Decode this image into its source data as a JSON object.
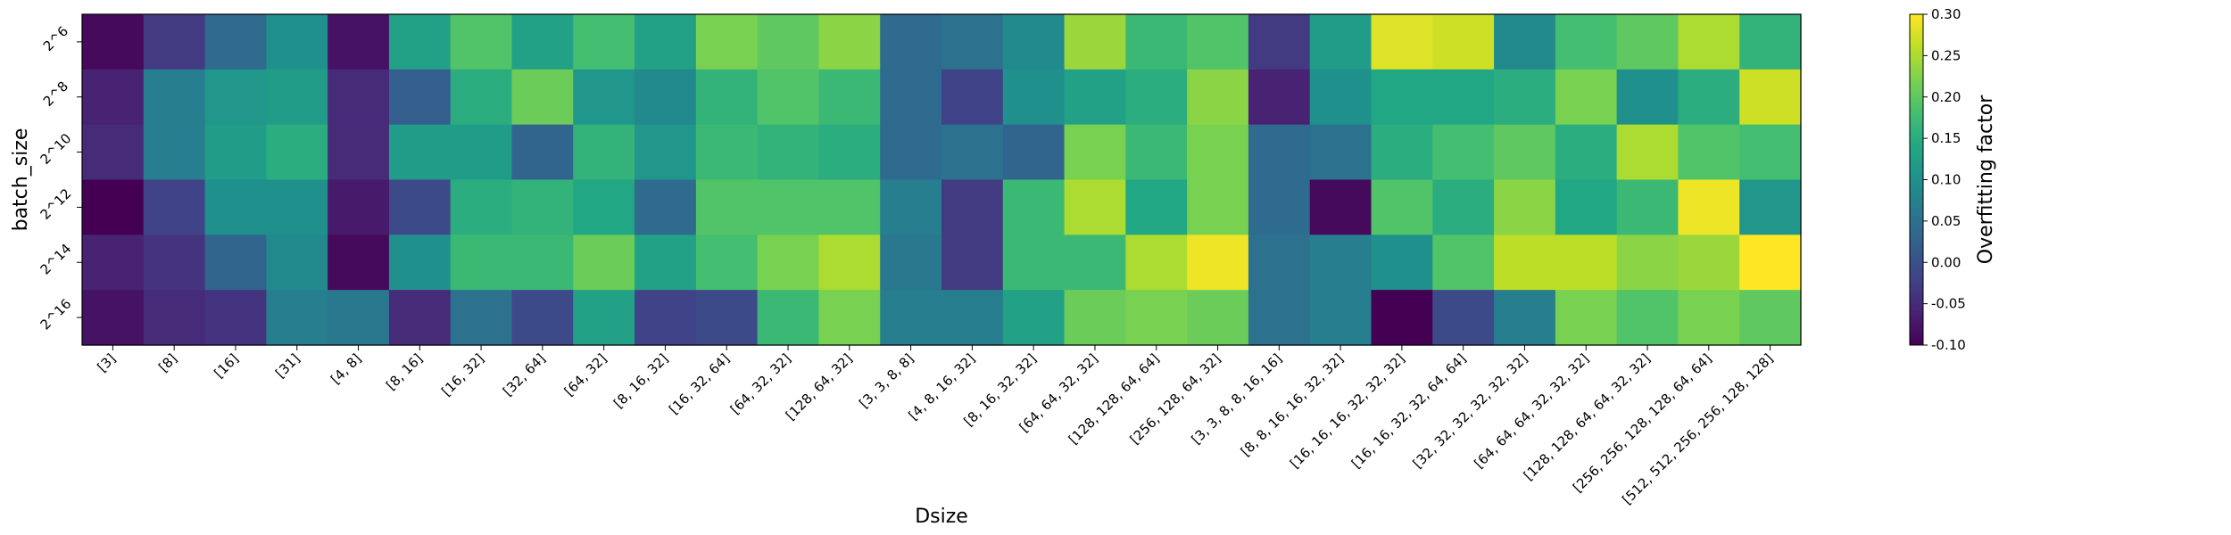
{
  "chart_data": {
    "type": "heatmap",
    "xlabel": "Dsize",
    "ylabel": "batch_size",
    "colorbar_label": "Overfitting factor",
    "colormap": "viridis",
    "vmin": -0.1,
    "vmax": 0.3,
    "colorbar_ticks": [
      "0.30",
      "0.25",
      "0.20",
      "0.15",
      "0.10",
      "0.05",
      "0.00",
      "-0.05",
      "-0.10"
    ],
    "colorbar_tick_values": [
      0.3,
      0.25,
      0.2,
      0.15,
      0.1,
      0.05,
      0.0,
      -0.05,
      -0.1
    ],
    "x_categories": [
      "[3]",
      "[8]",
      "[16]",
      "[31]",
      "[4, 8]",
      "[8, 16]",
      "[16, 32]",
      "[32, 64]",
      "[64, 32]",
      "[8, 16, 32]",
      "[16, 32, 64]",
      "[64, 32, 32]",
      "[128, 64, 32]",
      "[3, 3, 8, 8]",
      "[4, 8, 16, 32]",
      "[8, 16, 32, 32]",
      "[64, 64, 32, 32]",
      "[128, 128, 64, 64]",
      "[256, 128, 64, 32]",
      "[3, 3, 8, 8, 16, 16]",
      "[8, 8, 16, 16, 32, 32]",
      "[16, 16, 16, 32, 32, 32]",
      "[16, 16, 32, 32, 64, 64]",
      "[32, 32, 32, 32, 32, 32]",
      "[64, 64, 64, 32, 32, 32]",
      "[128, 128, 64, 64, 32, 32]",
      "[256, 256, 128, 128, 64, 64]",
      "[512, 512, 256, 256, 128, 128]"
    ],
    "y_categories": [
      "2^6",
      "2^8",
      "2^10",
      "2^12",
      "2^14",
      "2^16"
    ],
    "values": [
      [
        -0.09,
        -0.03,
        0.04,
        0.1,
        -0.08,
        0.13,
        0.19,
        0.13,
        0.18,
        0.13,
        0.22,
        0.2,
        0.23,
        0.04,
        0.05,
        0.09,
        0.24,
        0.17,
        0.19,
        -0.03,
        0.12,
        0.28,
        0.27,
        0.09,
        0.18,
        0.2,
        0.25,
        0.16
      ],
      [
        -0.06,
        0.07,
        0.11,
        0.12,
        -0.05,
        0.02,
        0.15,
        0.21,
        0.11,
        0.09,
        0.16,
        0.19,
        0.17,
        0.04,
        -0.02,
        0.1,
        0.13,
        0.15,
        0.23,
        -0.06,
        0.1,
        0.14,
        0.14,
        0.15,
        0.22,
        0.1,
        0.15,
        0.27
      ],
      [
        -0.05,
        0.07,
        0.12,
        0.15,
        -0.05,
        0.12,
        0.12,
        0.03,
        0.16,
        0.11,
        0.17,
        0.16,
        0.15,
        0.04,
        0.05,
        0.03,
        0.22,
        0.17,
        0.22,
        0.04,
        0.05,
        0.15,
        0.18,
        0.2,
        0.15,
        0.25,
        0.19,
        0.18
      ],
      [
        -0.1,
        -0.02,
        0.1,
        0.1,
        -0.07,
        -0.01,
        0.15,
        0.16,
        0.14,
        0.04,
        0.19,
        0.19,
        0.19,
        0.07,
        -0.03,
        0.17,
        0.25,
        0.14,
        0.22,
        0.04,
        -0.09,
        0.19,
        0.15,
        0.23,
        0.14,
        0.17,
        0.29,
        0.11
      ],
      [
        -0.06,
        -0.04,
        0.03,
        0.09,
        -0.09,
        0.1,
        0.17,
        0.17,
        0.21,
        0.13,
        0.18,
        0.22,
        0.25,
        0.06,
        -0.03,
        0.17,
        0.17,
        0.25,
        0.29,
        0.05,
        0.07,
        0.1,
        0.19,
        0.26,
        0.26,
        0.23,
        0.24,
        0.3
      ],
      [
        -0.08,
        -0.05,
        -0.04,
        0.07,
        0.06,
        -0.05,
        0.05,
        -0.01,
        0.13,
        -0.02,
        -0.01,
        0.17,
        0.22,
        0.07,
        0.07,
        0.13,
        0.21,
        0.22,
        0.21,
        0.05,
        0.07,
        -0.1,
        -0.01,
        0.07,
        0.22,
        0.19,
        0.22,
        0.2
      ]
    ]
  }
}
